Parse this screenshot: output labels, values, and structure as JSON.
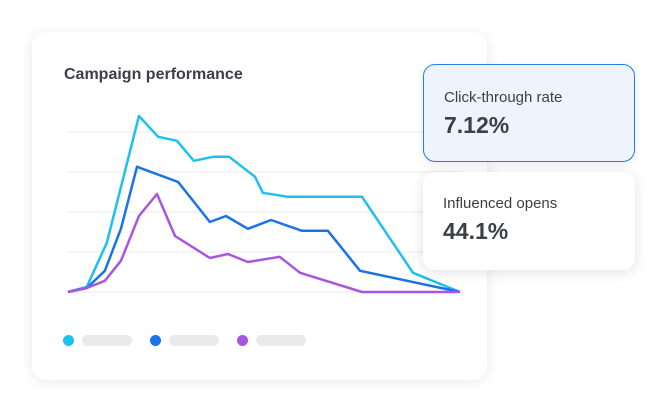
{
  "card": {
    "title": "Campaign performance"
  },
  "stats": [
    {
      "label": "Click-through rate",
      "value": "7.12%"
    },
    {
      "label": "Influenced opens",
      "value": "44.1%"
    }
  ],
  "chart_data": {
    "type": "line",
    "title": "Campaign performance",
    "grid": true,
    "legend": "bottom-left",
    "ylim": [
      0,
      4
    ],
    "xlim": [
      0,
      100
    ],
    "series": [
      {
        "color": "#1ec0ef",
        "points": [
          [
            0,
            0
          ],
          [
            4.8,
            0.13
          ],
          [
            9.9,
            1.23
          ],
          [
            18.1,
            4.4
          ],
          [
            23,
            3.88
          ],
          [
            27.8,
            3.78
          ],
          [
            32.1,
            3.28
          ],
          [
            37,
            3.38
          ],
          [
            41.1,
            3.38
          ],
          [
            47.7,
            2.88
          ],
          [
            49.7,
            2.48
          ],
          [
            56.1,
            2.38
          ],
          [
            75,
            2.38
          ],
          [
            88,
            0.48
          ],
          [
            100,
            0
          ]
        ]
      },
      {
        "color": "#1a73e8",
        "points": [
          [
            0,
            0
          ],
          [
            4.8,
            0.1
          ],
          [
            9.4,
            0.53
          ],
          [
            13.5,
            1.58
          ],
          [
            17.6,
            3.13
          ],
          [
            28.1,
            2.75
          ],
          [
            36.2,
            1.75
          ],
          [
            40.3,
            1.9
          ],
          [
            45.9,
            1.58
          ],
          [
            51.8,
            1.8
          ],
          [
            59.7,
            1.53
          ],
          [
            66.3,
            1.53
          ],
          [
            74.5,
            0.53
          ],
          [
            100,
            0
          ]
        ]
      },
      {
        "color": "#a855e0",
        "points": [
          [
            0,
            0
          ],
          [
            4.8,
            0.1
          ],
          [
            9.4,
            0.28
          ],
          [
            13.5,
            0.78
          ],
          [
            18.1,
            1.9
          ],
          [
            22.7,
            2.45
          ],
          [
            27.3,
            1.4
          ],
          [
            36.2,
            0.85
          ],
          [
            40.8,
            0.95
          ],
          [
            45.9,
            0.75
          ],
          [
            54,
            0.88
          ],
          [
            59.2,
            0.48
          ],
          [
            75,
            0
          ],
          [
            100,
            0
          ]
        ]
      }
    ]
  }
}
